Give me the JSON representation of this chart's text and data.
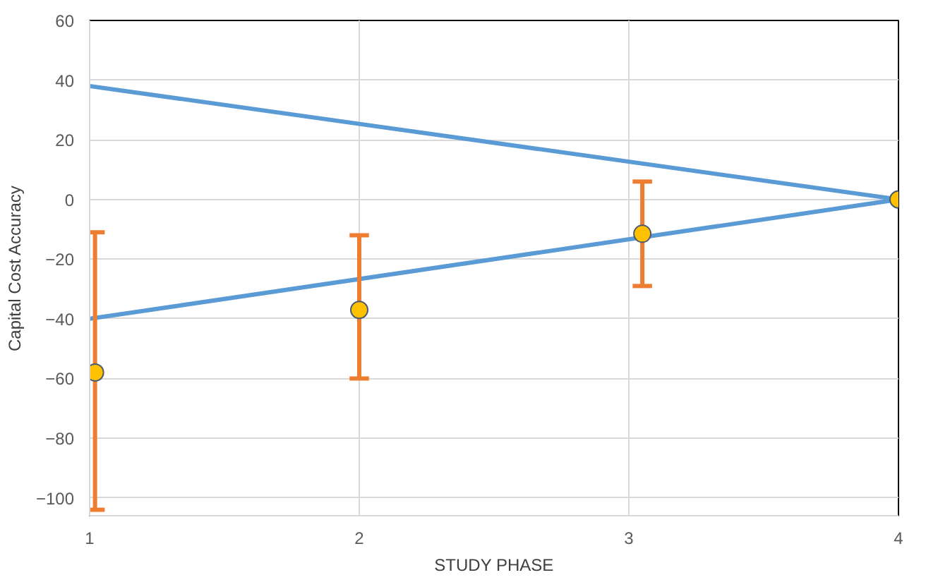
{
  "chart_data": {
    "type": "line",
    "xlabel": "STUDY PHASE",
    "ylabel": "Capital Cost Accuracy",
    "xlim": [
      1,
      4
    ],
    "xticks": [
      1,
      2,
      3,
      4
    ],
    "ylim": [
      -106,
      60
    ],
    "yticks": [
      -100,
      -80,
      -60,
      -40,
      -20,
      0,
      20,
      40,
      60
    ],
    "grid": true,
    "series": [
      {
        "color": "#5b9bd5",
        "x": [
          1,
          4
        ],
        "values": [
          38,
          0
        ]
      },
      {
        "color": "#5b9bd5",
        "x": [
          1,
          4
        ],
        "values": [
          -40,
          0
        ]
      },
      {
        "type": "scatter",
        "color": "#ffc000",
        "marker": "circle",
        "x": [
          1.02,
          2,
          3.05,
          4
        ],
        "values": [
          -58,
          -37,
          -11.5,
          0
        ],
        "errors": [
          [
            -104,
            -11
          ],
          [
            -60,
            -12
          ],
          [
            -29,
            6
          ],
          null
        ]
      }
    ]
  }
}
